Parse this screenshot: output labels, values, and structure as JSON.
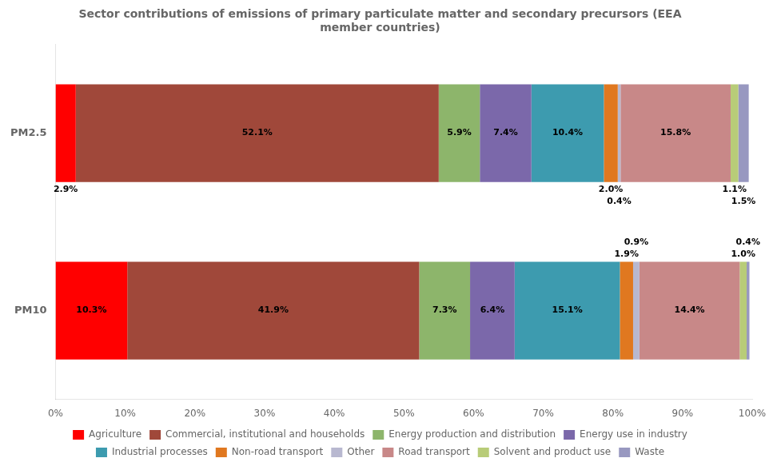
{
  "chart_data": {
    "type": "bar",
    "title": "Sector contributions of emissions of primary particulate matter and secondary precursors (EEA\nmember countries)",
    "orientation": "horizontal",
    "stacked": true,
    "data_labels": true,
    "grid": false,
    "legend": "bottom",
    "categories": [
      "PM2.5",
      "PM10"
    ],
    "series": [
      {
        "name": "Agriculture",
        "color": "#FF0000",
        "values": [
          2.9,
          10.3
        ],
        "value_labels": [
          "2.9%",
          "10.3%"
        ]
      },
      {
        "name": "Commercial, institutional and households",
        "color": "#A0483A",
        "values": [
          52.1,
          41.9
        ],
        "value_labels": [
          "52.1%",
          "41.9%"
        ]
      },
      {
        "name": "Energy production and distribution",
        "color": "#8DB56B",
        "values": [
          5.9,
          7.3
        ],
        "value_labels": [
          "5.9%",
          "7.3%"
        ]
      },
      {
        "name": "Energy use in industry",
        "color": "#7B68AA",
        "values": [
          7.4,
          6.4
        ],
        "value_labels": [
          "7.4%",
          "6.4%"
        ]
      },
      {
        "name": "Industrial processes",
        "color": "#3D9BAF",
        "values": [
          10.4,
          15.1
        ],
        "value_labels": [
          "10.4%",
          "15.1%"
        ]
      },
      {
        "name": "Non-road transport",
        "color": "#E07820",
        "values": [
          2.0,
          1.9
        ],
        "value_labels": [
          "2.0%",
          "1.9%"
        ]
      },
      {
        "name": "Other",
        "color": "#B8B8D0",
        "values": [
          0.4,
          0.9
        ],
        "value_labels": [
          "0.4%",
          "0.9%"
        ]
      },
      {
        "name": "Road transport",
        "color": "#C88888",
        "values": [
          15.8,
          14.4
        ],
        "value_labels": [
          "15.8%",
          "14.4%"
        ]
      },
      {
        "name": "Solvent and product use",
        "color": "#B8CC78",
        "values": [
          1.1,
          1.0
        ],
        "value_labels": [
          "1.1%",
          "1.0%"
        ]
      },
      {
        "name": "Waste",
        "color": "#9898C0",
        "values": [
          1.5,
          0.4
        ],
        "value_labels": [
          "1.5%",
          "0.4%"
        ]
      }
    ],
    "xlim": [
      0,
      100
    ],
    "xticks": [
      {
        "value": 0,
        "label": "0%"
      },
      {
        "value": 10,
        "label": "10%"
      },
      {
        "value": 20,
        "label": "20%"
      },
      {
        "value": 30,
        "label": "30%"
      },
      {
        "value": 40,
        "label": "40%"
      },
      {
        "value": 50,
        "label": "50%"
      },
      {
        "value": 60,
        "label": "60%"
      },
      {
        "value": 70,
        "label": "70%"
      },
      {
        "value": 80,
        "label": "80%"
      },
      {
        "value": 90,
        "label": "90%"
      },
      {
        "value": 100,
        "label": "100%"
      }
    ]
  }
}
